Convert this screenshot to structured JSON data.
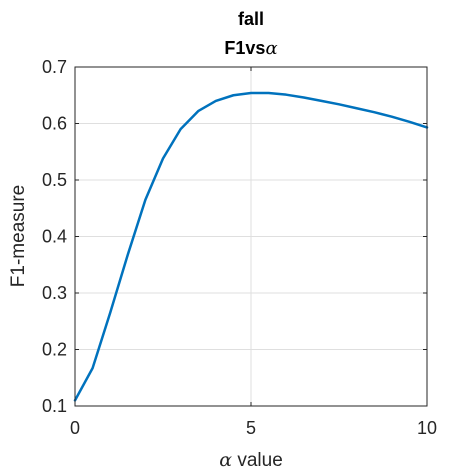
{
  "chart_data": {
    "type": "line",
    "title": "fall",
    "subtitle_prefix": "F1vs",
    "subtitle_symbol": "α",
    "xlabel_symbol": "α",
    "xlabel_suffix": " value",
    "ylabel": "F1-measure",
    "xlim": [
      0,
      10
    ],
    "ylim": [
      0.1,
      0.7
    ],
    "x_ticks": [
      0,
      5,
      10
    ],
    "x_tick_labels": [
      "0",
      "5",
      "10"
    ],
    "y_ticks": [
      0.1,
      0.2,
      0.3,
      0.4,
      0.5,
      0.6,
      0.7
    ],
    "y_tick_labels": [
      "0.1",
      "0.2",
      "0.3",
      "0.4",
      "0.5",
      "0.6",
      "0.7"
    ],
    "grid": true,
    "series": [
      {
        "color": "#0072bd",
        "x": [
          0,
          0.5,
          1,
          1.5,
          2,
          2.5,
          3,
          3.5,
          4,
          4.5,
          5,
          5.5,
          6,
          6.5,
          7,
          7.5,
          8,
          8.5,
          9,
          9.5,
          10
        ],
        "y": [
          0.11,
          0.167,
          0.265,
          0.368,
          0.465,
          0.538,
          0.59,
          0.622,
          0.64,
          0.65,
          0.654,
          0.654,
          0.651,
          0.646,
          0.64,
          0.634,
          0.627,
          0.62,
          0.612,
          0.603,
          0.593
        ]
      }
    ]
  }
}
